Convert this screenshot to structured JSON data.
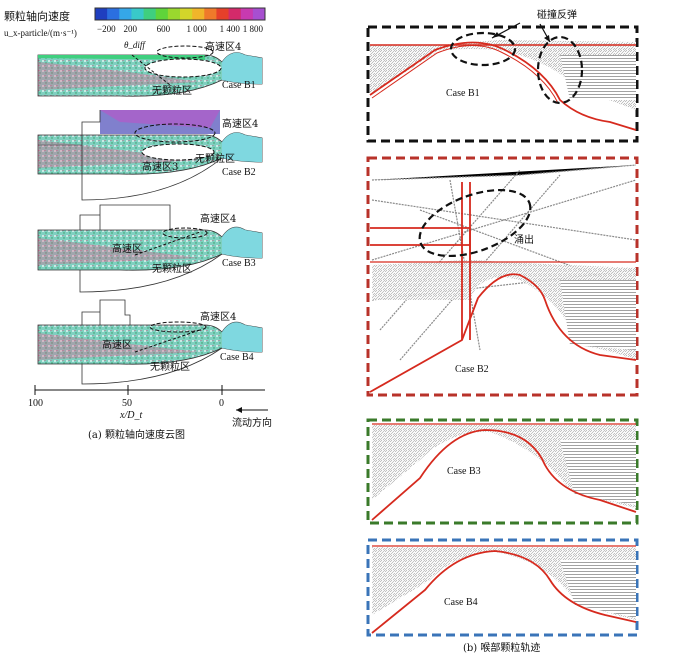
{
  "colorbar": {
    "title": "颗粒轴向速度",
    "unit_label": "u_x-particle/(m·s⁻¹)",
    "ticks": [
      "−200",
      "200",
      "600",
      "1 000",
      "1 400",
      "1 800"
    ],
    "colors": [
      "#1f3fbf",
      "#2b6fe0",
      "#35a7e8",
      "#39c9c9",
      "#3fcf7f",
      "#5fd43a",
      "#9ad82e",
      "#d3d52a",
      "#f0b52a",
      "#ef7a2a",
      "#e5402a",
      "#d42a6a",
      "#c83ab0",
      "#a74fd0"
    ]
  },
  "left_panel": {
    "cases": [
      {
        "id": "B1",
        "label": "Case B1",
        "color": "#111111",
        "annotations": [
          "高速区4",
          "无颗粒区",
          "θ_diff"
        ]
      },
      {
        "id": "B2",
        "label": "Case B2",
        "color": "#d62a1e",
        "annotations": [
          "高速区4",
          "无颗粒区",
          "高速区3"
        ]
      },
      {
        "id": "B3",
        "label": "Case B3",
        "color": "#3a8a2a",
        "annotations": [
          "高速区4",
          "高速区",
          "无颗粒区"
        ]
      },
      {
        "id": "B4",
        "label": "Case B4",
        "color": "#2a6fbf",
        "annotations": [
          "高速区4",
          "高速区",
          "无颗粒区"
        ]
      }
    ],
    "axis": {
      "ticks": [
        "100",
        "50",
        "0"
      ],
      "label": "x/D_t"
    },
    "flow_direction": "流动方向",
    "caption": "(a) 颗粒轴向速度云图"
  },
  "right_panel": {
    "frames": [
      {
        "label": "Case B1",
        "border": "#111111",
        "annotation": "碰撞反弹"
      },
      {
        "label": "Case B2",
        "border": "#b8322a",
        "annotation": "涌出"
      },
      {
        "label": "Case B3",
        "border": "#3a7a2a",
        "annotation": ""
      },
      {
        "label": "Case B4",
        "border": "#3a74b8",
        "annotation": ""
      }
    ],
    "caption": "(b) 喉部颗粒轨迹"
  }
}
